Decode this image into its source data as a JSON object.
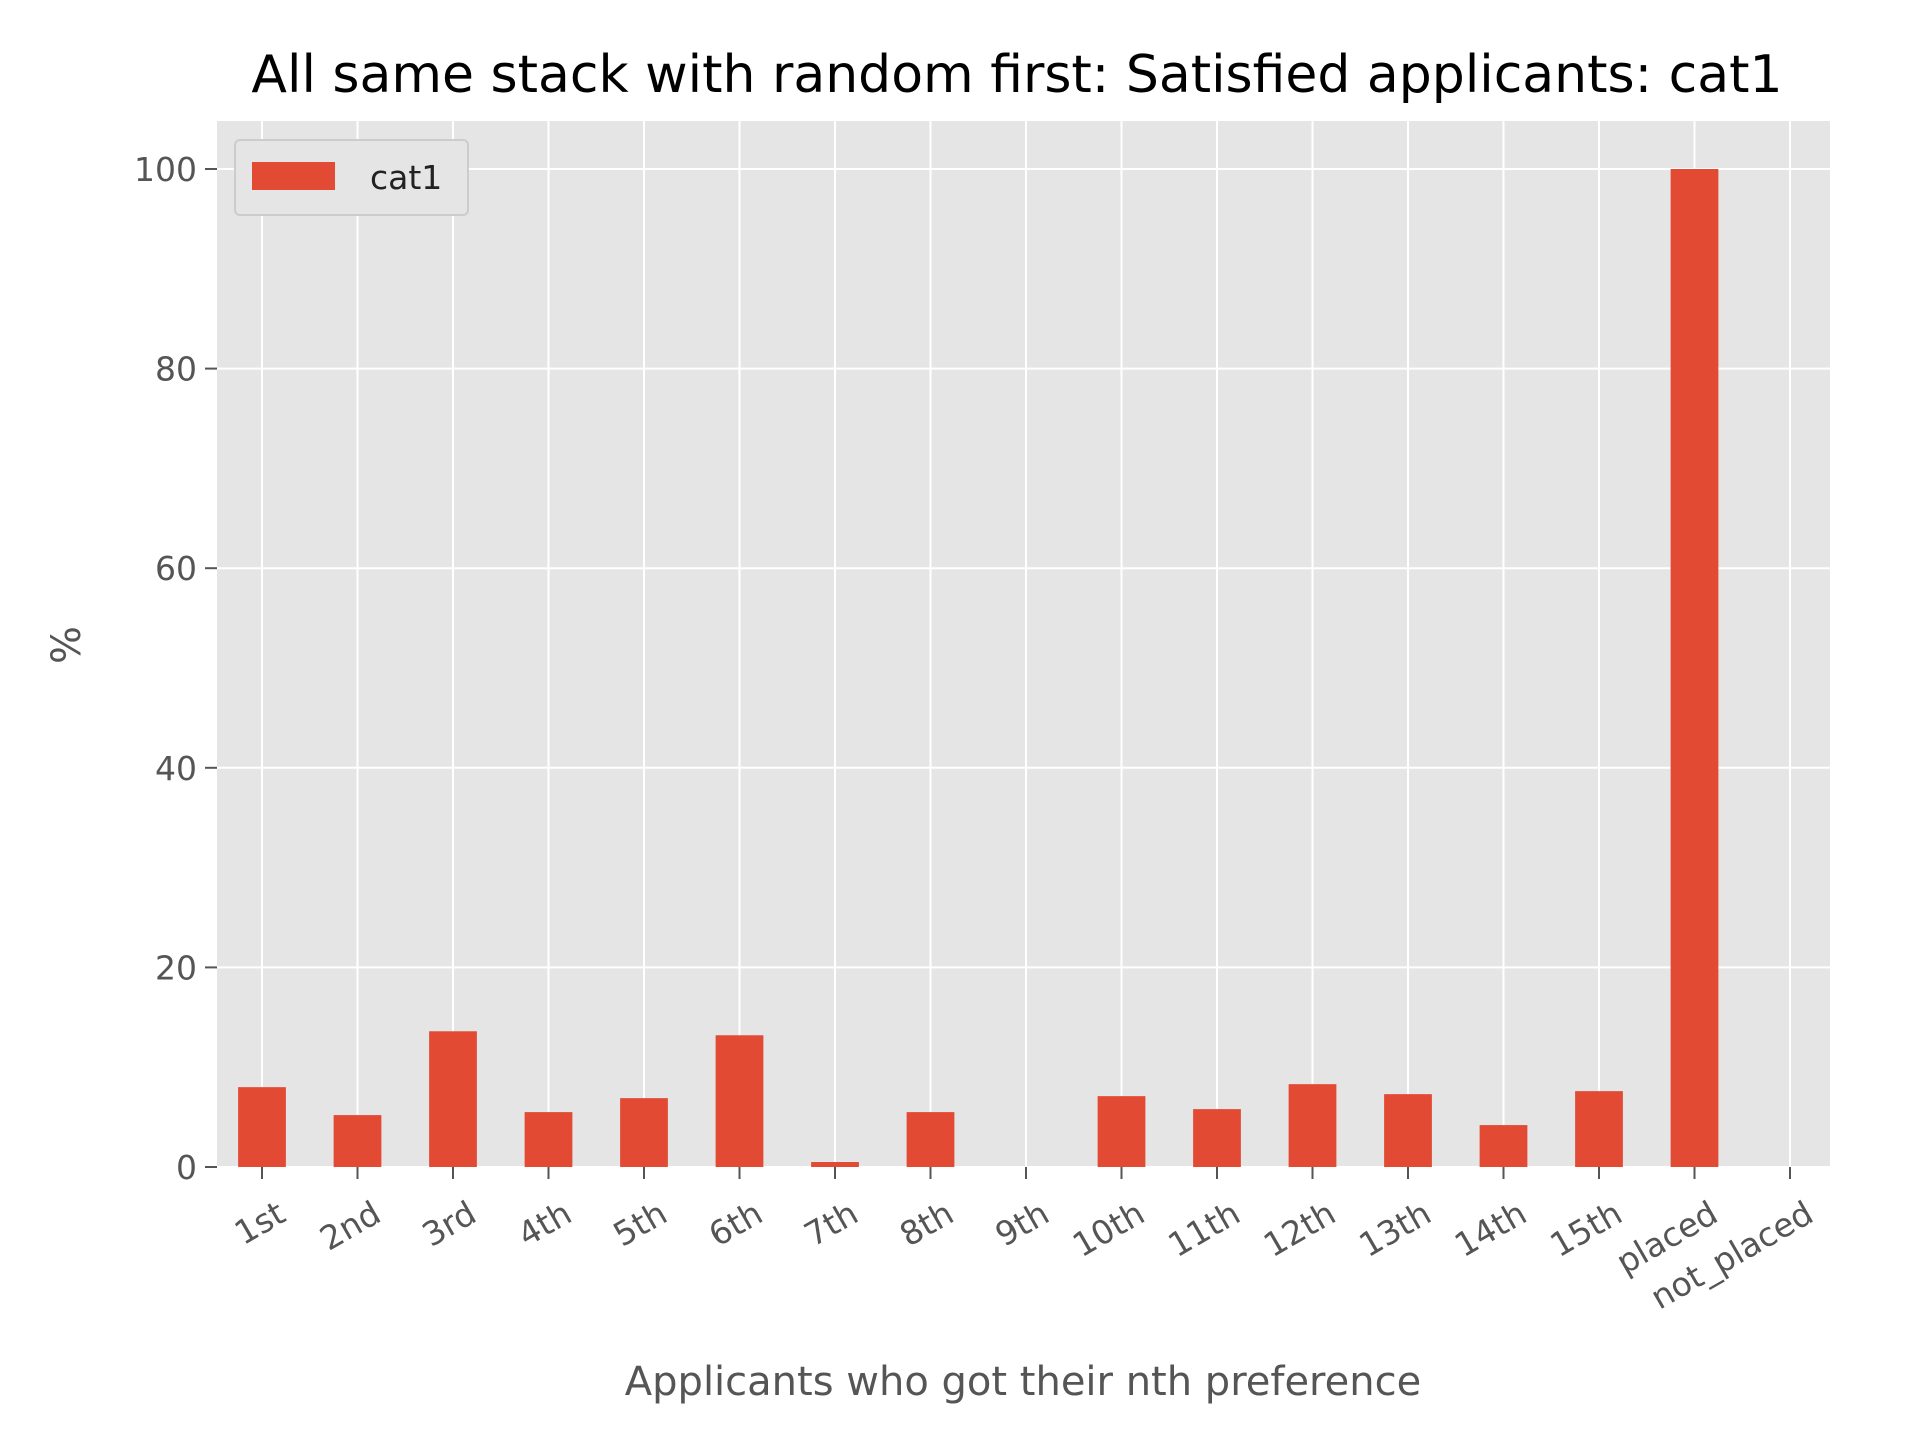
{
  "chart_data": {
    "type": "bar",
    "title": "All same stack with random first: Satisfied applicants: cat1",
    "xlabel": "Applicants who got their nth preference",
    "ylabel": "%",
    "categories": [
      "1st",
      "2nd",
      "3rd",
      "4th",
      "5th",
      "6th",
      "7th",
      "8th",
      "9th",
      "10th",
      "11th",
      "12th",
      "13th",
      "14th",
      "15th",
      "placed",
      "not_placed"
    ],
    "series": [
      {
        "name": "cat1",
        "color": "#E24A33",
        "values": [
          8.0,
          5.2,
          13.6,
          5.5,
          6.9,
          13.2,
          0.5,
          5.5,
          0,
          7.1,
          5.8,
          8.3,
          7.3,
          4.2,
          7.6,
          100,
          0
        ]
      }
    ],
    "ylim": [
      0,
      105
    ],
    "yticks": [
      0,
      20,
      40,
      60,
      80,
      100
    ],
    "grid": true,
    "legend": "top-left",
    "background": "#E5E5E5"
  }
}
